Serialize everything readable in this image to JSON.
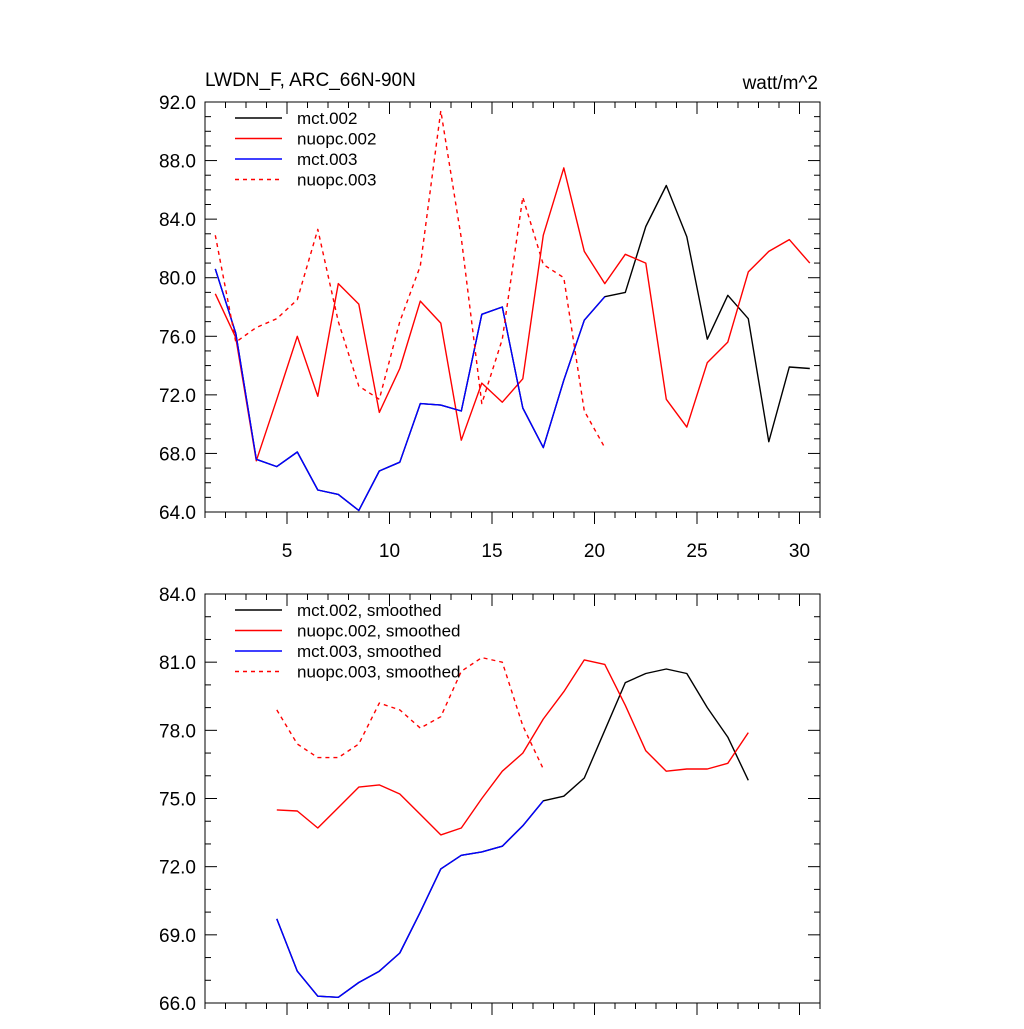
{
  "chart_data": [
    {
      "type": "line",
      "title": "LWDN_F, ARC_66N-90N",
      "units": "watt/m^2",
      "xlim": [
        1,
        31
      ],
      "ylim": [
        64,
        92
      ],
      "xticks": [
        5,
        10,
        15,
        20,
        25,
        30
      ],
      "xtick_labels": [
        "5",
        "10",
        "15",
        "20",
        "25",
        "30"
      ],
      "yticks": [
        64,
        68,
        72,
        76,
        80,
        84,
        88,
        92
      ],
      "ytick_labels": [
        "64.0",
        "68.0",
        "72.0",
        "76.0",
        "80.0",
        "84.0",
        "88.0",
        "92.0"
      ],
      "legend_position": "top-left",
      "series": [
        {
          "name": "mct.002",
          "color": "#000000",
          "dashed": false,
          "x": [
            1.5,
            2.5,
            3.5,
            4.5,
            5.5,
            6.5,
            7.5,
            8.5,
            9.5,
            10.5,
            11.5,
            12.5,
            13.5,
            14.5,
            15.5,
            16.5,
            17.5,
            18.5,
            19.5,
            20.5,
            21.5,
            22.5,
            23.5,
            24.5,
            25.5,
            26.5,
            27.5,
            28.5,
            29.5,
            30.5
          ],
          "y": [
            80.6,
            76.2,
            67.6,
            67.1,
            68.1,
            65.5,
            65.2,
            64.1,
            66.8,
            67.4,
            71.4,
            71.3,
            70.9,
            77.5,
            78.0,
            71.1,
            68.4,
            73.0,
            77.1,
            78.7,
            79.0,
            83.5,
            86.3,
            82.8,
            75.8,
            78.8,
            77.2,
            68.8,
            73.9,
            73.8
          ]
        },
        {
          "name": "nuopc.002",
          "color": "#ff0000",
          "dashed": false,
          "x": [
            1.5,
            2.5,
            3.5,
            4.5,
            5.5,
            6.5,
            7.5,
            8.5,
            9.5,
            10.5,
            11.5,
            12.5,
            13.5,
            14.5,
            15.5,
            16.5,
            17.5,
            18.5,
            19.5,
            20.5,
            21.5,
            22.5,
            23.5,
            24.5,
            25.5,
            26.5,
            27.5,
            28.5,
            29.5,
            30.5
          ],
          "y": [
            78.9,
            75.9,
            67.5,
            71.7,
            76.0,
            71.9,
            79.6,
            78.2,
            70.8,
            73.8,
            78.4,
            76.9,
            68.9,
            72.8,
            71.5,
            73.1,
            82.9,
            87.5,
            81.8,
            79.6,
            81.6,
            81.0,
            71.7,
            69.8,
            74.2,
            75.6,
            80.4,
            81.8,
            82.6,
            81.0
          ]
        },
        {
          "name": "mct.003",
          "color": "#0000ff",
          "dashed": false,
          "x": [
            1.5,
            2.5,
            3.5,
            4.5,
            5.5,
            6.5,
            7.5,
            8.5,
            9.5,
            10.5,
            11.5,
            12.5,
            13.5,
            14.5,
            15.5,
            16.5,
            17.5,
            18.5,
            19.5,
            20.5
          ],
          "y": [
            80.6,
            76.2,
            67.6,
            67.1,
            68.1,
            65.5,
            65.2,
            64.1,
            66.8,
            67.4,
            71.4,
            71.3,
            70.9,
            77.5,
            78.0,
            71.1,
            68.4,
            73.0,
            77.1,
            78.7
          ]
        },
        {
          "name": "nuopc.003",
          "color": "#ff0000",
          "dashed": true,
          "x": [
            1.5,
            2.5,
            3.5,
            4.5,
            5.5,
            6.5,
            7.5,
            8.5,
            9.5,
            10.5,
            11.5,
            12.5,
            13.5,
            14.5,
            15.5,
            16.5,
            17.5,
            18.5,
            19.5,
            20.5
          ],
          "y": [
            82.9,
            75.6,
            76.6,
            77.2,
            78.5,
            83.3,
            77.0,
            72.6,
            71.7,
            77.0,
            80.8,
            91.4,
            82.7,
            71.4,
            75.8,
            85.5,
            80.9,
            80.0,
            70.9,
            68.4
          ]
        }
      ]
    },
    {
      "type": "line",
      "title": "",
      "units": "",
      "xlim": [
        1,
        31
      ],
      "ylim": [
        66,
        84
      ],
      "xticks": [
        5,
        10,
        15,
        20,
        25,
        30
      ],
      "xtick_labels": [],
      "yticks": [
        66,
        69,
        72,
        75,
        78,
        81,
        84
      ],
      "ytick_labels": [
        "66.0",
        "69.0",
        "72.0",
        "75.0",
        "78.0",
        "81.0",
        "84.0"
      ],
      "legend_position": "top-left",
      "series": [
        {
          "name": "mct.002, smoothed",
          "color": "#000000",
          "dashed": false,
          "x": [
            4.5,
            5.5,
            6.5,
            7.5,
            8.5,
            9.5,
            10.5,
            11.5,
            12.5,
            13.5,
            14.5,
            15.5,
            16.5,
            17.5,
            18.5,
            19.5,
            20.5,
            21.5,
            22.5,
            23.5,
            24.5,
            25.5,
            26.5,
            27.5
          ],
          "y": [
            69.7,
            67.4,
            66.3,
            66.25,
            66.9,
            67.4,
            68.2,
            70.0,
            71.9,
            72.5,
            72.65,
            72.9,
            73.8,
            74.9,
            75.1,
            75.9,
            78.0,
            80.1,
            80.5,
            80.7,
            80.5,
            79.0,
            77.7,
            75.8
          ]
        },
        {
          "name": "nuopc.002, smoothed",
          "color": "#ff0000",
          "dashed": false,
          "x": [
            4.5,
            5.5,
            6.5,
            7.5,
            8.5,
            9.5,
            10.5,
            11.5,
            12.5,
            13.5,
            14.5,
            15.5,
            16.5,
            17.5,
            18.5,
            19.5,
            20.5,
            21.5,
            22.5,
            23.5,
            24.5,
            25.5,
            26.5,
            27.5
          ],
          "y": [
            74.5,
            74.45,
            73.7,
            74.6,
            75.5,
            75.6,
            75.2,
            74.3,
            73.4,
            73.7,
            75.0,
            76.2,
            77.0,
            78.5,
            79.7,
            81.1,
            80.9,
            79.1,
            77.1,
            76.2,
            76.3,
            76.3,
            76.55,
            77.9
          ]
        },
        {
          "name": "mct.003, smoothed",
          "color": "#0000ff",
          "dashed": false,
          "x": [
            4.5,
            5.5,
            6.5,
            7.5,
            8.5,
            9.5,
            10.5,
            11.5,
            12.5,
            13.5,
            14.5,
            15.5,
            16.5,
            17.5
          ],
          "y": [
            69.7,
            67.4,
            66.3,
            66.25,
            66.9,
            67.4,
            68.2,
            70.0,
            71.9,
            72.5,
            72.65,
            72.9,
            73.8,
            74.9
          ]
        },
        {
          "name": "nuopc.003, smoothed",
          "color": "#ff0000",
          "dashed": true,
          "x": [
            4.5,
            5.5,
            6.5,
            7.5,
            8.5,
            9.5,
            10.5,
            11.5,
            12.5,
            13.5,
            14.5,
            15.5,
            16.5,
            17.5
          ],
          "y": [
            78.9,
            77.4,
            76.8,
            76.8,
            77.4,
            79.2,
            78.9,
            78.1,
            78.6,
            80.6,
            81.2,
            81.0,
            78.2,
            76.3
          ]
        }
      ]
    }
  ]
}
